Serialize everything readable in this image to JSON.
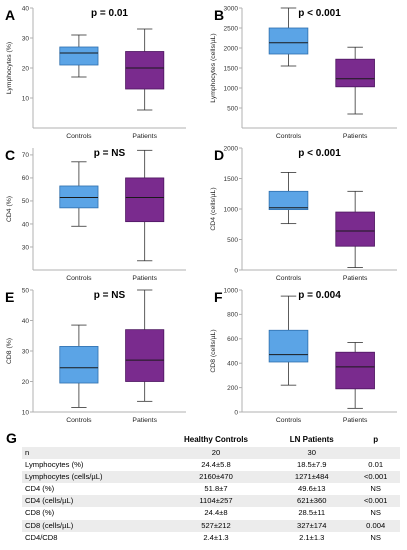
{
  "chart_data": [
    {
      "panel": "A",
      "type": "box",
      "title": "p = 0.01",
      "ylabel": "Lymphocytes (%)",
      "ylim": [
        0,
        40
      ],
      "yticks": [
        10,
        20,
        30,
        40
      ],
      "categories": [
        "Controls",
        "Patients"
      ],
      "boxes": [
        {
          "category": "Controls",
          "min": 17,
          "q1": 21,
          "median": 25,
          "q3": 27,
          "max": 31
        },
        {
          "category": "Patients",
          "min": 6,
          "q1": 13,
          "median": 20,
          "q3": 25.5,
          "max": 33
        }
      ]
    },
    {
      "panel": "B",
      "type": "box",
      "title": "p < 0.001",
      "ylabel": "Lymphocytes (cells/µL)",
      "ylim": [
        0,
        3000
      ],
      "yticks": [
        500,
        1000,
        1500,
        2000,
        2500,
        3000
      ],
      "categories": [
        "Controls",
        "Patients"
      ],
      "boxes": [
        {
          "category": "Controls",
          "min": 1550,
          "q1": 1850,
          "median": 2130,
          "q3": 2500,
          "max": 3000
        },
        {
          "category": "Patients",
          "min": 350,
          "q1": 1030,
          "median": 1230,
          "q3": 1720,
          "max": 2020
        }
      ]
    },
    {
      "panel": "C",
      "type": "box",
      "title": "p = NS",
      "ylabel": "CD4 (%)",
      "ylim": [
        20,
        73
      ],
      "yticks": [
        30,
        40,
        50,
        60,
        70
      ],
      "categories": [
        "Controls",
        "Patients"
      ],
      "boxes": [
        {
          "category": "Controls",
          "min": 39,
          "q1": 47,
          "median": 51.5,
          "q3": 56.5,
          "max": 67
        },
        {
          "category": "Patients",
          "min": 24,
          "q1": 41,
          "median": 51.5,
          "q3": 60,
          "max": 72
        }
      ]
    },
    {
      "panel": "D",
      "type": "box",
      "title": "p < 0.001",
      "ylabel": "CD4 (cells/µL)",
      "ylim": [
        0,
        2000
      ],
      "yticks": [
        0,
        500,
        1000,
        1500,
        2000
      ],
      "categories": [
        "Controls",
        "Patients"
      ],
      "boxes": [
        {
          "category": "Controls",
          "min": 760,
          "q1": 990,
          "median": 1020,
          "q3": 1290,
          "max": 1600
        },
        {
          "category": "Patients",
          "min": 40,
          "q1": 390,
          "median": 640,
          "q3": 950,
          "max": 1290
        }
      ]
    },
    {
      "panel": "E",
      "type": "box",
      "title": "p = NS",
      "ylabel": "CD8 (%)",
      "ylim": [
        10,
        50
      ],
      "yticks": [
        10,
        20,
        30,
        40,
        50
      ],
      "categories": [
        "Controls",
        "Patients"
      ],
      "boxes": [
        {
          "category": "Controls",
          "min": 11.5,
          "q1": 19.5,
          "median": 24.5,
          "q3": 31.5,
          "max": 38.5
        },
        {
          "category": "Patients",
          "min": 13.5,
          "q1": 20,
          "median": 27,
          "q3": 37,
          "max": 50
        }
      ]
    },
    {
      "panel": "F",
      "type": "box",
      "title": "p = 0.004",
      "ylabel": "CD8 (cells/µL)",
      "ylim": [
        0,
        1000
      ],
      "yticks": [
        0,
        200,
        400,
        600,
        800,
        1000
      ],
      "categories": [
        "Controls",
        "Patients"
      ],
      "boxes": [
        {
          "category": "Controls",
          "min": 220,
          "q1": 410,
          "median": 470,
          "q3": 670,
          "max": 950
        },
        {
          "category": "Patients",
          "min": 30,
          "q1": 190,
          "median": 370,
          "q3": 490,
          "max": 570
        }
      ]
    }
  ],
  "colors": {
    "controls": "#5ba4e6",
    "controls_edge": "#2e6fae",
    "patients": "#7a2b8e",
    "patients_edge": "#4d1660",
    "axis": "#b0b0b0",
    "whisker": "#333333",
    "median": "#1a1a1a"
  },
  "table": {
    "letter": "G",
    "headers": [
      "",
      "Healthy Controls",
      "LN Patients",
      "p"
    ],
    "rows": [
      [
        "n",
        "20",
        "30",
        ""
      ],
      [
        "Lymphocytes (%)",
        "24.4±5.8",
        "18.5±7.9",
        "0.01"
      ],
      [
        "Lymphocytes (cells/µL)",
        "2160±470",
        "1271±484",
        "<0.001"
      ],
      [
        "CD4 (%)",
        "51.8±7",
        "49.6±13",
        "NS"
      ],
      [
        "CD4 (cells/µL)",
        "1104±257",
        "621±360",
        "<0.001"
      ],
      [
        "CD8 (%)",
        "24.4±8",
        "28.5±11",
        "NS"
      ],
      [
        "CD8 (cells/µL)",
        "527±212",
        "327±174",
        "0.004"
      ],
      [
        "CD4/CD8",
        "2.4±1.3",
        "2.1±1.3",
        "NS"
      ]
    ]
  }
}
